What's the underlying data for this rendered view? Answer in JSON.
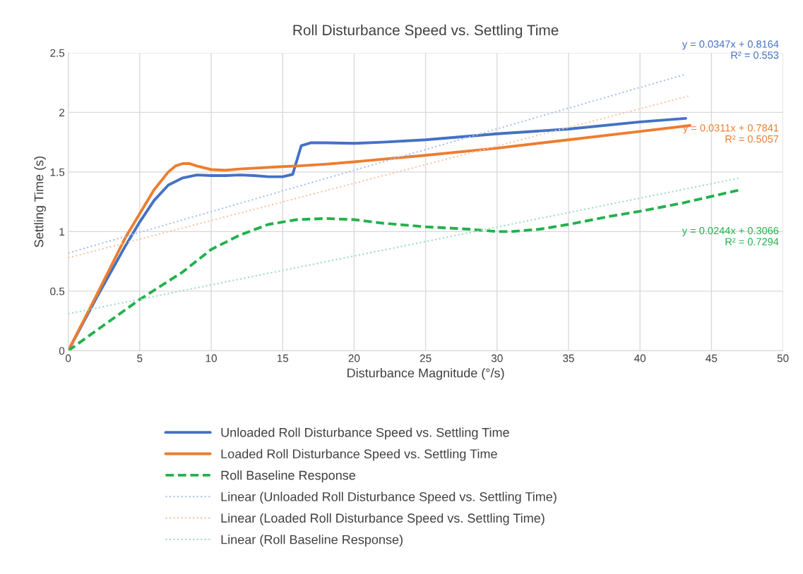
{
  "chart_data": {
    "type": "line",
    "title": "Roll Disturbance Speed vs. Settling Time",
    "xlabel": "Disturbance Magnitude (°/s)",
    "ylabel": "Settling Time (s)",
    "xlim": [
      0,
      50
    ],
    "xticks": [
      0,
      5,
      10,
      15,
      20,
      25,
      30,
      35,
      40,
      45,
      50
    ],
    "ylim": [
      0,
      2.5
    ],
    "yticks": [
      0,
      0.5,
      1,
      1.5,
      2,
      2.5
    ],
    "grid": true,
    "legend": "bottom",
    "marker": "none",
    "series": [
      {
        "name": "Unloaded Roll Disturbance Speed vs. Settling Time",
        "color": "#4472c4",
        "line_style": "solid",
        "x": [
          0,
          2,
          4,
          5,
          6,
          7,
          8,
          9,
          10,
          11,
          12,
          13,
          14,
          15,
          15.7,
          16,
          16.3,
          17,
          18,
          20,
          22,
          25,
          30,
          35,
          40,
          43.2
        ],
        "values": [
          0,
          0.45,
          0.88,
          1.08,
          1.26,
          1.39,
          1.45,
          1.475,
          1.47,
          1.47,
          1.475,
          1.47,
          1.46,
          1.46,
          1.48,
          1.6,
          1.72,
          1.745,
          1.745,
          1.74,
          1.75,
          1.77,
          1.82,
          1.86,
          1.92,
          1.95
        ]
      },
      {
        "name": "Loaded Roll Disturbance Speed vs. Settling Time",
        "color": "#ed7d31",
        "line_style": "solid",
        "x": [
          0,
          2,
          4,
          5,
          6,
          7,
          7.5,
          8,
          8.5,
          9,
          10,
          11,
          12,
          15,
          16,
          18,
          20,
          25,
          30,
          35,
          40,
          43.5
        ],
        "values": [
          0,
          0.47,
          0.95,
          1.15,
          1.35,
          1.5,
          1.55,
          1.57,
          1.57,
          1.55,
          1.52,
          1.515,
          1.525,
          1.545,
          1.55,
          1.565,
          1.585,
          1.64,
          1.7,
          1.77,
          1.84,
          1.89
        ]
      },
      {
        "name": "Roll Baseline Response",
        "color": "#22b14c",
        "line_style": "dashed",
        "x": [
          0,
          5,
          8,
          10,
          12,
          14,
          16,
          18,
          20,
          22,
          25,
          28,
          30,
          31,
          33,
          35,
          38,
          40,
          43,
          47
        ],
        "values": [
          0,
          0.43,
          0.66,
          0.85,
          0.97,
          1.06,
          1.1,
          1.11,
          1.1,
          1.07,
          1.04,
          1.02,
          1.0,
          1.0,
          1.02,
          1.06,
          1.13,
          1.17,
          1.24,
          1.35
        ]
      },
      {
        "name": "Linear (Unloaded Roll Disturbance Speed vs. Settling Time)",
        "color": "#a9c1ea",
        "line_style": "dotted",
        "x": [
          0,
          43.2
        ],
        "values": [
          0.82,
          2.32
        ]
      },
      {
        "name": "Linear (Loaded Roll Disturbance Speed vs. Settling Time)",
        "color": "#f7c4a6",
        "line_style": "dotted",
        "x": [
          0,
          43.5
        ],
        "values": [
          0.78,
          2.14
        ]
      },
      {
        "name": "Linear (Roll Baseline Response)",
        "color": "#9edcc0",
        "line_style": "dotted",
        "x": [
          0,
          47
        ],
        "values": [
          0.31,
          1.45
        ]
      }
    ],
    "annotations": [
      "y = 0.0347x + 0.8164\nR² = 0.553",
      "y = 0.0311x + 0.7841\nR² = 0.5057",
      "y = 0.0244x + 0.3066\nR² = 0.7294"
    ]
  }
}
